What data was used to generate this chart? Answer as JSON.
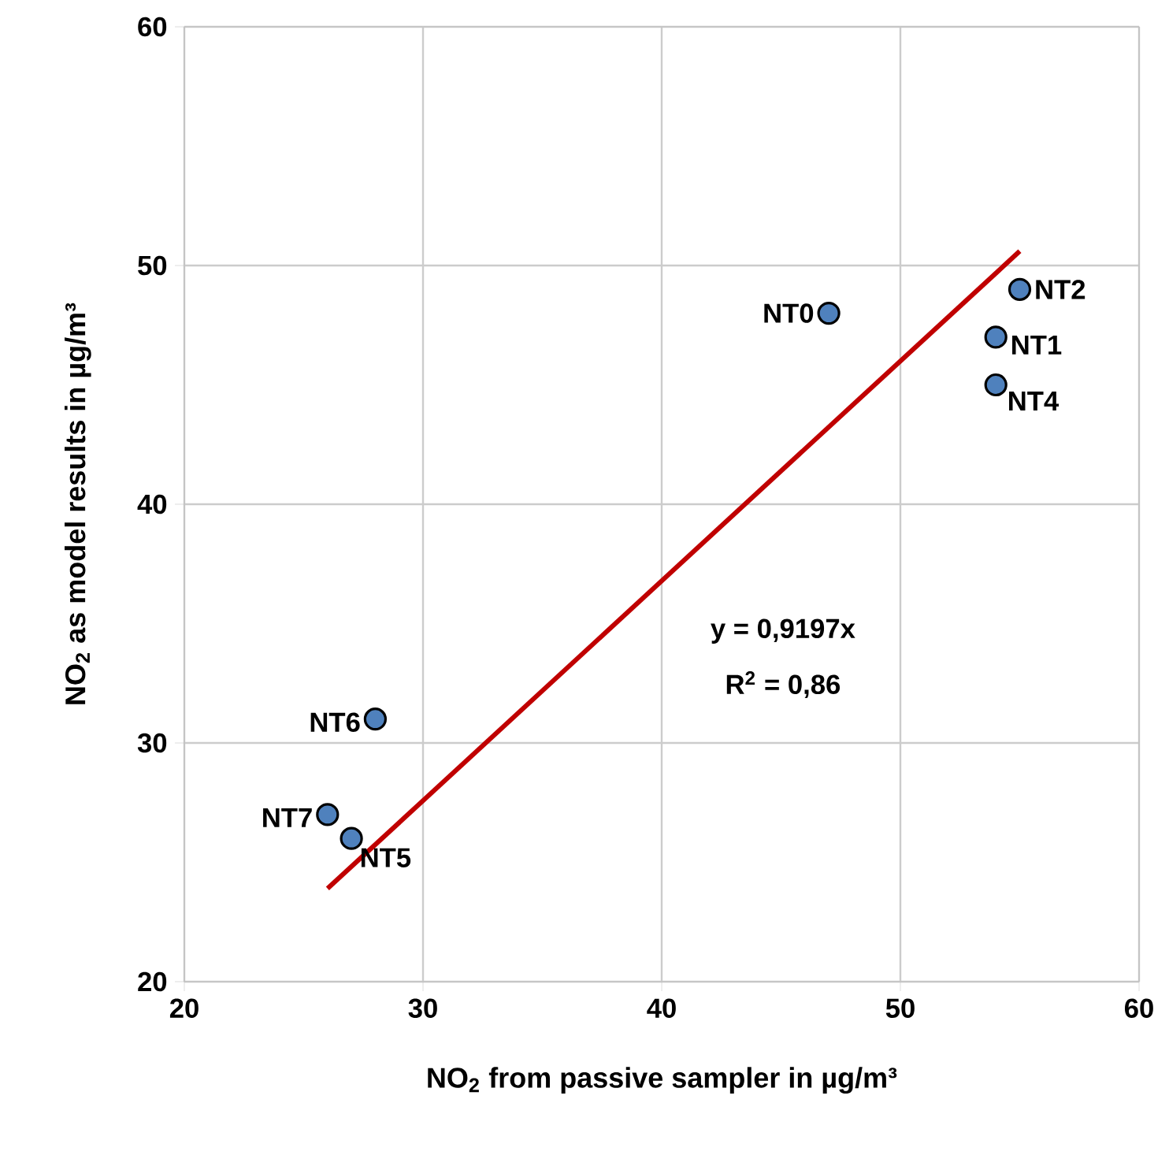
{
  "chart_data": {
    "type": "scatter",
    "xlabel": "NO$_{2}$ from passive sampler in µg/m³",
    "ylabel": "NO$_{2}$ as model results in µg/m³",
    "xlim": [
      20,
      60
    ],
    "ylim": [
      20,
      60
    ],
    "xticks": [
      20,
      30,
      40,
      50,
      60
    ],
    "yticks": [
      20,
      30,
      40,
      50,
      60
    ],
    "grid": true,
    "series": [
      {
        "color": "#4f81bd",
        "marker": "circle",
        "x": [
          47,
          54,
          55,
          54,
          27,
          28,
          26
        ],
        "values": [
          48,
          47,
          49,
          45,
          26,
          31,
          27
        ]
      },
      {
        "type": "line",
        "color": "#c00000",
        "marker": "none",
        "line_style": "solid",
        "x": [
          26,
          55
        ],
        "values": [
          23.9,
          50.6
        ]
      }
    ],
    "annotations": [
      {
        "text": "NT0",
        "x": 47,
        "y": 48
      },
      {
        "text": "NT1",
        "x": 54,
        "y": 47
      },
      {
        "text": "NT2",
        "x": 55,
        "y": 49
      },
      {
        "text": "NT4",
        "x": 54,
        "y": 45
      },
      {
        "text": "NT5",
        "x": 27,
        "y": 26
      },
      {
        "text": "NT6",
        "x": 28,
        "y": 31
      },
      {
        "text": "NT7",
        "x": 26,
        "y": 27
      },
      "y = 0,9197x",
      "R$^{2}$ = 0,86"
    ]
  }
}
